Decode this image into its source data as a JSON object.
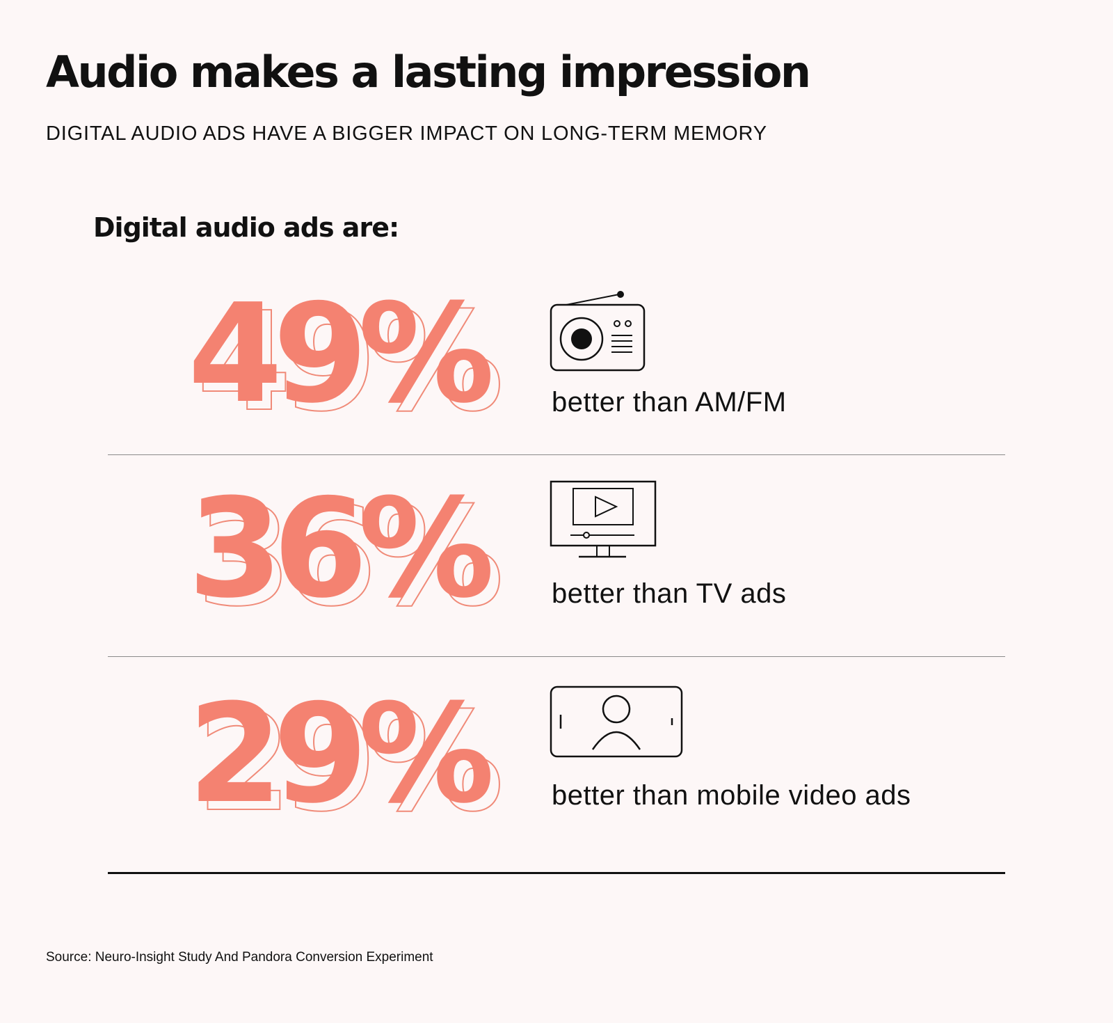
{
  "title": "Audio makes a lasting impression",
  "subtitle": "DIGITAL AUDIO ADS HAVE A BIGGER IMPACT ON LONG-TERM MEMORY",
  "lead": "Digital audio ads are:",
  "source": "Source: Neuro-Insight Study And Pandora Conversion Experiment",
  "colors": {
    "accent": "#f48271",
    "text": "#111111",
    "background": "#fdf7f7"
  },
  "chart_data": {
    "type": "table",
    "title": "Audio makes a lasting impression",
    "subtitle": "DIGITAL AUDIO ADS HAVE A BIGGER IMPACT ON LONG-TERM MEMORY",
    "unit": "%",
    "rows": [
      {
        "value": 49,
        "display": "49%",
        "label": "better than AM/FM",
        "icon": "radio-icon"
      },
      {
        "value": 36,
        "display": "36%",
        "label": "better than TV ads",
        "icon": "tv-icon"
      },
      {
        "value": 29,
        "display": "29%",
        "label": "better than mobile video ads",
        "icon": "mobile-video-icon"
      }
    ]
  }
}
